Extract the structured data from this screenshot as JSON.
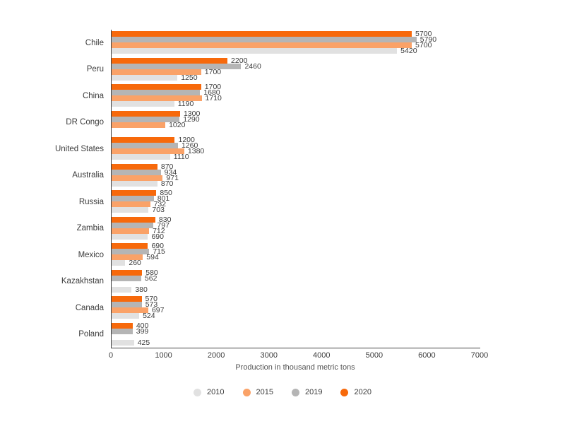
{
  "chart_data": {
    "type": "bar",
    "orientation": "horizontal",
    "xlabel": "Production in thousand metric tons",
    "xlim": [
      0,
      7000
    ],
    "x_ticks": [
      0,
      1000,
      2000,
      3000,
      4000,
      5000,
      6000,
      7000
    ],
    "grid": false,
    "legend_position": "bottom",
    "axis_color": "#424242",
    "label_color": "#3c3c3c",
    "categories": [
      "Chile",
      "Peru",
      "China",
      "DR Congo",
      "United States",
      "Australia",
      "Russia",
      "Zambia",
      "Mexico",
      "Kazakhstan",
      "Canada",
      "Poland"
    ],
    "series": [
      {
        "name": "2010",
        "color": "#E1E1E1",
        "values": [
          5420,
          1250,
          1190,
          null,
          1110,
          870,
          703,
          690,
          260,
          380,
          524,
          425
        ]
      },
      {
        "name": "2015",
        "color": "#FAA268",
        "values": [
          5700,
          1700,
          1710,
          1020,
          1380,
          971,
          732,
          712,
          594,
          null,
          697,
          null
        ]
      },
      {
        "name": "2019",
        "color": "#B5B5B5",
        "values": [
          5790,
          2460,
          1680,
          1290,
          1260,
          934,
          801,
          797,
          715,
          562,
          573,
          399
        ]
      },
      {
        "name": "2020",
        "color": "#F7690B",
        "values": [
          5700,
          2200,
          1700,
          1300,
          1200,
          870,
          850,
          830,
          690,
          580,
          570,
          400
        ]
      }
    ],
    "row_order_top_to_bottom": [
      "2020",
      "2019",
      "2015",
      "2010"
    ]
  }
}
